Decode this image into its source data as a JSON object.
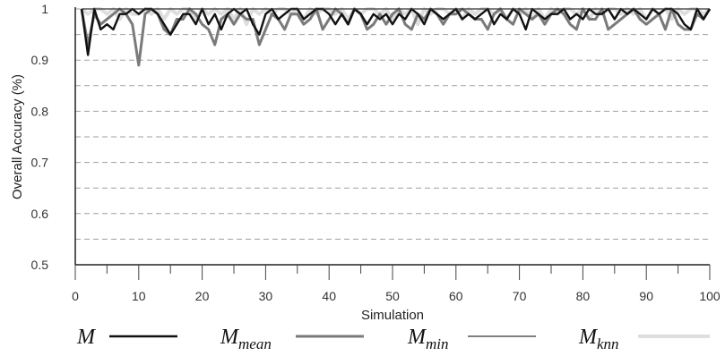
{
  "chart_data": {
    "type": "line",
    "title": "",
    "xlabel": "Simulation",
    "ylabel": "Overall Accuracy (%)",
    "xlim": [
      0,
      100
    ],
    "ylim": [
      0.5,
      1
    ],
    "x_ticks": [
      "0",
      "10",
      "20",
      "30",
      "40",
      "50",
      "60",
      "70",
      "80",
      "90",
      "100"
    ],
    "y_ticks": [
      "0.5",
      "0.6",
      "0.7",
      "0.8",
      "0.9",
      "1"
    ],
    "grid": "dashed horizontal lines every 0.05",
    "legend_position": "bottom",
    "x": [
      1,
      2,
      3,
      4,
      5,
      6,
      7,
      8,
      9,
      10,
      11,
      12,
      13,
      14,
      15,
      16,
      17,
      18,
      19,
      20,
      21,
      22,
      23,
      24,
      25,
      26,
      27,
      28,
      29,
      30,
      31,
      32,
      33,
      34,
      35,
      36,
      37,
      38,
      39,
      40,
      41,
      42,
      43,
      44,
      45,
      46,
      47,
      48,
      49,
      50,
      51,
      52,
      53,
      54,
      55,
      56,
      57,
      58,
      59,
      60,
      61,
      62,
      63,
      64,
      65,
      66,
      67,
      68,
      69,
      70,
      71,
      72,
      73,
      74,
      75,
      76,
      77,
      78,
      79,
      80,
      81,
      82,
      83,
      84,
      85,
      86,
      87,
      88,
      89,
      90,
      91,
      92,
      93,
      94,
      95,
      96,
      97,
      98,
      99,
      100
    ],
    "series": [
      {
        "name": "M",
        "color": "#111111",
        "values": [
          1,
          0.91,
          1,
          0.96,
          0.97,
          0.96,
          0.99,
          0.99,
          1,
          0.99,
          1,
          1,
          0.99,
          0.97,
          0.95,
          0.97,
          0.99,
          0.99,
          0.97,
          1,
          0.97,
          0.99,
          0.96,
          0.99,
          1,
          0.99,
          1,
          0.97,
          0.95,
          0.99,
          1,
          0.98,
          0.99,
          1,
          1,
          0.98,
          0.99,
          1,
          1,
          0.99,
          0.97,
          0.99,
          0.97,
          1,
          0.99,
          0.97,
          0.99,
          0.98,
          0.99,
          0.97,
          0.99,
          0.98,
          1,
          0.99,
          0.97,
          1,
          0.99,
          0.98,
          0.99,
          1,
          0.98,
          0.99,
          0.98,
          0.99,
          1,
          0.97,
          0.99,
          0.98,
          1,
          0.99,
          0.96,
          1,
          0.99,
          0.98,
          0.99,
          0.99,
          1,
          0.98,
          0.99,
          0.98,
          1,
          0.99,
          0.99,
          1,
          0.98,
          1,
          0.99,
          1,
          0.99,
          0.98,
          1,
          0.99,
          1,
          1,
          0.99,
          0.97,
          0.96,
          1,
          0.98,
          1
        ]
      },
      {
        "name": "Mmean",
        "color": "#7a7a7a",
        "values": [
          1,
          0.93,
          0.99,
          0.97,
          0.98,
          0.99,
          1,
          0.99,
          0.97,
          0.89,
          0.99,
          1,
          0.99,
          0.96,
          0.95,
          0.98,
          0.98,
          1,
          0.99,
          0.97,
          0.96,
          0.93,
          0.98,
          0.99,
          0.97,
          0.99,
          0.98,
          0.98,
          0.93,
          0.96,
          0.99,
          0.98,
          0.96,
          0.99,
          0.99,
          0.97,
          0.98,
          1,
          0.96,
          0.98,
          1,
          0.99,
          0.97,
          1,
          0.99,
          0.96,
          0.97,
          0.99,
          0.97,
          0.99,
          1,
          0.97,
          0.96,
          0.99,
          0.98,
          1,
          0.99,
          0.97,
          0.99,
          0.99,
          1,
          0.99,
          0.98,
          0.98,
          0.96,
          0.99,
          1,
          0.98,
          0.97,
          1,
          0.99,
          0.98,
          0.99,
          0.97,
          0.99,
          1,
          0.99,
          0.97,
          0.96,
          1,
          0.98,
          0.98,
          1,
          0.96,
          0.97,
          0.98,
          0.99,
          1,
          0.98,
          0.97,
          0.98,
          0.99,
          0.96,
          1,
          0.97,
          0.96,
          0.96,
          0.99,
          0.98,
          1
        ]
      },
      {
        "name": "Mmin",
        "color": "#333333",
        "values": [
          1,
          1,
          1,
          1,
          1,
          1,
          1,
          1,
          1,
          1,
          1,
          1,
          1,
          1,
          1,
          1,
          1,
          1,
          1,
          1,
          1,
          1,
          1,
          1,
          1,
          1,
          1,
          1,
          1,
          1,
          1,
          1,
          1,
          1,
          1,
          1,
          1,
          1,
          1,
          1,
          1,
          1,
          1,
          1,
          1,
          1,
          1,
          1,
          1,
          1,
          1,
          1,
          1,
          1,
          1,
          1,
          1,
          1,
          1,
          1,
          1,
          1,
          1,
          1,
          1,
          1,
          1,
          1,
          1,
          1,
          1,
          1,
          1,
          1,
          1,
          1,
          1,
          1,
          1,
          1,
          1,
          1,
          1,
          1,
          1,
          1,
          1,
          1,
          1,
          1,
          1,
          1,
          1,
          1,
          1,
          1,
          1,
          1,
          1,
          1
        ]
      },
      {
        "name": "Mknn",
        "color": "#dedede",
        "values": [
          1,
          0.99,
          1,
          1,
          0.99,
          1,
          0.98,
          1,
          0.99,
          0.99,
          1,
          0.99,
          1,
          0.98,
          1,
          0.99,
          1,
          1,
          0.98,
          1,
          0.99,
          1,
          0.99,
          1,
          0.98,
          1,
          0.97,
          1,
          0.99,
          1,
          0.99,
          1,
          1,
          0.99,
          1,
          0.98,
          1,
          0.99,
          1,
          1,
          0.99,
          1,
          0.98,
          1,
          0.99,
          1,
          1,
          0.99,
          1,
          0.98,
          1,
          0.99,
          1,
          0.97,
          1,
          0.99,
          1,
          1,
          0.99,
          1,
          0.98,
          1,
          0.99,
          1,
          1,
          0.99,
          1,
          0.98,
          1,
          0.99,
          1,
          0.98,
          1,
          0.98,
          1,
          0.99,
          1,
          1,
          0.99,
          1,
          0.98,
          1,
          0.99,
          1,
          1,
          0.99,
          1,
          0.99,
          1,
          0.98,
          1,
          0.99,
          1,
          0.98,
          1,
          0.99,
          1,
          1,
          0.99,
          1
        ]
      }
    ]
  },
  "legend": {
    "items": [
      {
        "main": "M",
        "sub": ""
      },
      {
        "main": "M",
        "sub": "mean"
      },
      {
        "main": "M",
        "sub": "min"
      },
      {
        "main": "M",
        "sub": "knn"
      }
    ]
  }
}
